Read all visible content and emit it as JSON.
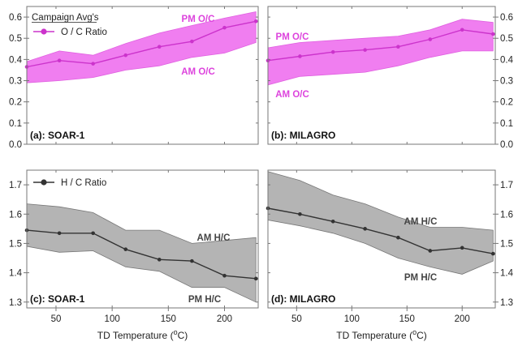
{
  "chart_data": [
    {
      "id": "a",
      "type": "area",
      "panel_label": "(a): SOAR-1",
      "legend_title": "Campaign Avg's",
      "legend_label": "O / C Ratio",
      "band_upper_label": "PM O/C",
      "band_lower_label": "AM O/C",
      "x": [
        24,
        53,
        83,
        112,
        142,
        171,
        200,
        228
      ],
      "line": [
        0.365,
        0.395,
        0.38,
        0.42,
        0.46,
        0.485,
        0.55,
        0.58
      ],
      "band_upper": [
        0.39,
        0.44,
        0.42,
        0.475,
        0.525,
        0.56,
        0.595,
        0.625
      ],
      "band_lower": [
        0.29,
        0.3,
        0.315,
        0.35,
        0.37,
        0.41,
        0.43,
        0.48
      ],
      "xlim": [
        24,
        230
      ],
      "ylim": [
        0.0,
        0.65
      ],
      "y_ticks": [
        "0.0",
        "0.1",
        "0.2",
        "0.3",
        "0.4",
        "0.5",
        "0.6"
      ],
      "y_axis_side": "left",
      "color": "#cc33cc",
      "band_color": "#f07ef0"
    },
    {
      "id": "b",
      "type": "area",
      "panel_label": "(b): MILAGRO",
      "band_upper_label": "PM O/C",
      "band_lower_label": "AM O/C",
      "x": [
        24,
        53,
        83,
        112,
        142,
        171,
        200,
        228
      ],
      "line": [
        0.395,
        0.415,
        0.435,
        0.445,
        0.46,
        0.495,
        0.54,
        0.52
      ],
      "band_upper": [
        0.455,
        0.48,
        0.49,
        0.5,
        0.51,
        0.54,
        0.59,
        0.575
      ],
      "band_lower": [
        0.28,
        0.32,
        0.33,
        0.34,
        0.37,
        0.41,
        0.44,
        0.44
      ],
      "xlim": [
        24,
        230
      ],
      "ylim": [
        0.0,
        0.65
      ],
      "y_ticks": [
        "0.0",
        "0.1",
        "0.2",
        "0.3",
        "0.4",
        "0.5",
        "0.6"
      ],
      "y_axis_side": "right",
      "color": "#cc33cc",
      "band_color": "#f07ef0"
    },
    {
      "id": "c",
      "type": "area",
      "panel_label": "(c): SOAR-1",
      "legend_label": "H / C Ratio",
      "band_upper_label": "AM H/C",
      "band_lower_label": "PM H/C",
      "x": [
        24,
        53,
        83,
        112,
        142,
        171,
        200,
        228
      ],
      "line": [
        1.545,
        1.535,
        1.535,
        1.48,
        1.445,
        1.44,
        1.39,
        1.38
      ],
      "band_upper": [
        1.635,
        1.625,
        1.605,
        1.545,
        1.545,
        1.5,
        1.51,
        1.52
      ],
      "band_lower": [
        1.49,
        1.47,
        1.475,
        1.42,
        1.405,
        1.35,
        1.35,
        1.3
      ],
      "xlim": [
        24,
        230
      ],
      "ylim": [
        1.28,
        1.75
      ],
      "y_ticks": [
        "1.3",
        "1.4",
        "1.5",
        "1.6",
        "1.7"
      ],
      "y_axis_side": "left",
      "x_ticks": [
        "50",
        "100",
        "150",
        "200"
      ],
      "xlabel": "TD Temperature (°C)",
      "color": "#333333",
      "band_color": "#b4b4b4"
    },
    {
      "id": "d",
      "type": "area",
      "panel_label": "(d): MILAGRO",
      "band_upper_label": "AM H/C",
      "band_lower_label": "PM H/C",
      "x": [
        24,
        53,
        83,
        112,
        142,
        171,
        200,
        228
      ],
      "line": [
        1.62,
        1.6,
        1.575,
        1.55,
        1.52,
        1.475,
        1.485,
        1.465
      ],
      "band_upper": [
        1.745,
        1.715,
        1.665,
        1.635,
        1.59,
        1.555,
        1.555,
        1.545
      ],
      "band_lower": [
        1.58,
        1.56,
        1.535,
        1.5,
        1.45,
        1.42,
        1.395,
        1.44
      ],
      "xlim": [
        24,
        230
      ],
      "ylim": [
        1.28,
        1.75
      ],
      "y_ticks": [
        "1.3",
        "1.4",
        "1.5",
        "1.6",
        "1.7"
      ],
      "y_axis_side": "right",
      "x_ticks": [
        "50",
        "100",
        "150",
        "200"
      ],
      "xlabel": "TD Temperature (°C)",
      "color": "#333333",
      "band_color": "#b4b4b4"
    }
  ]
}
